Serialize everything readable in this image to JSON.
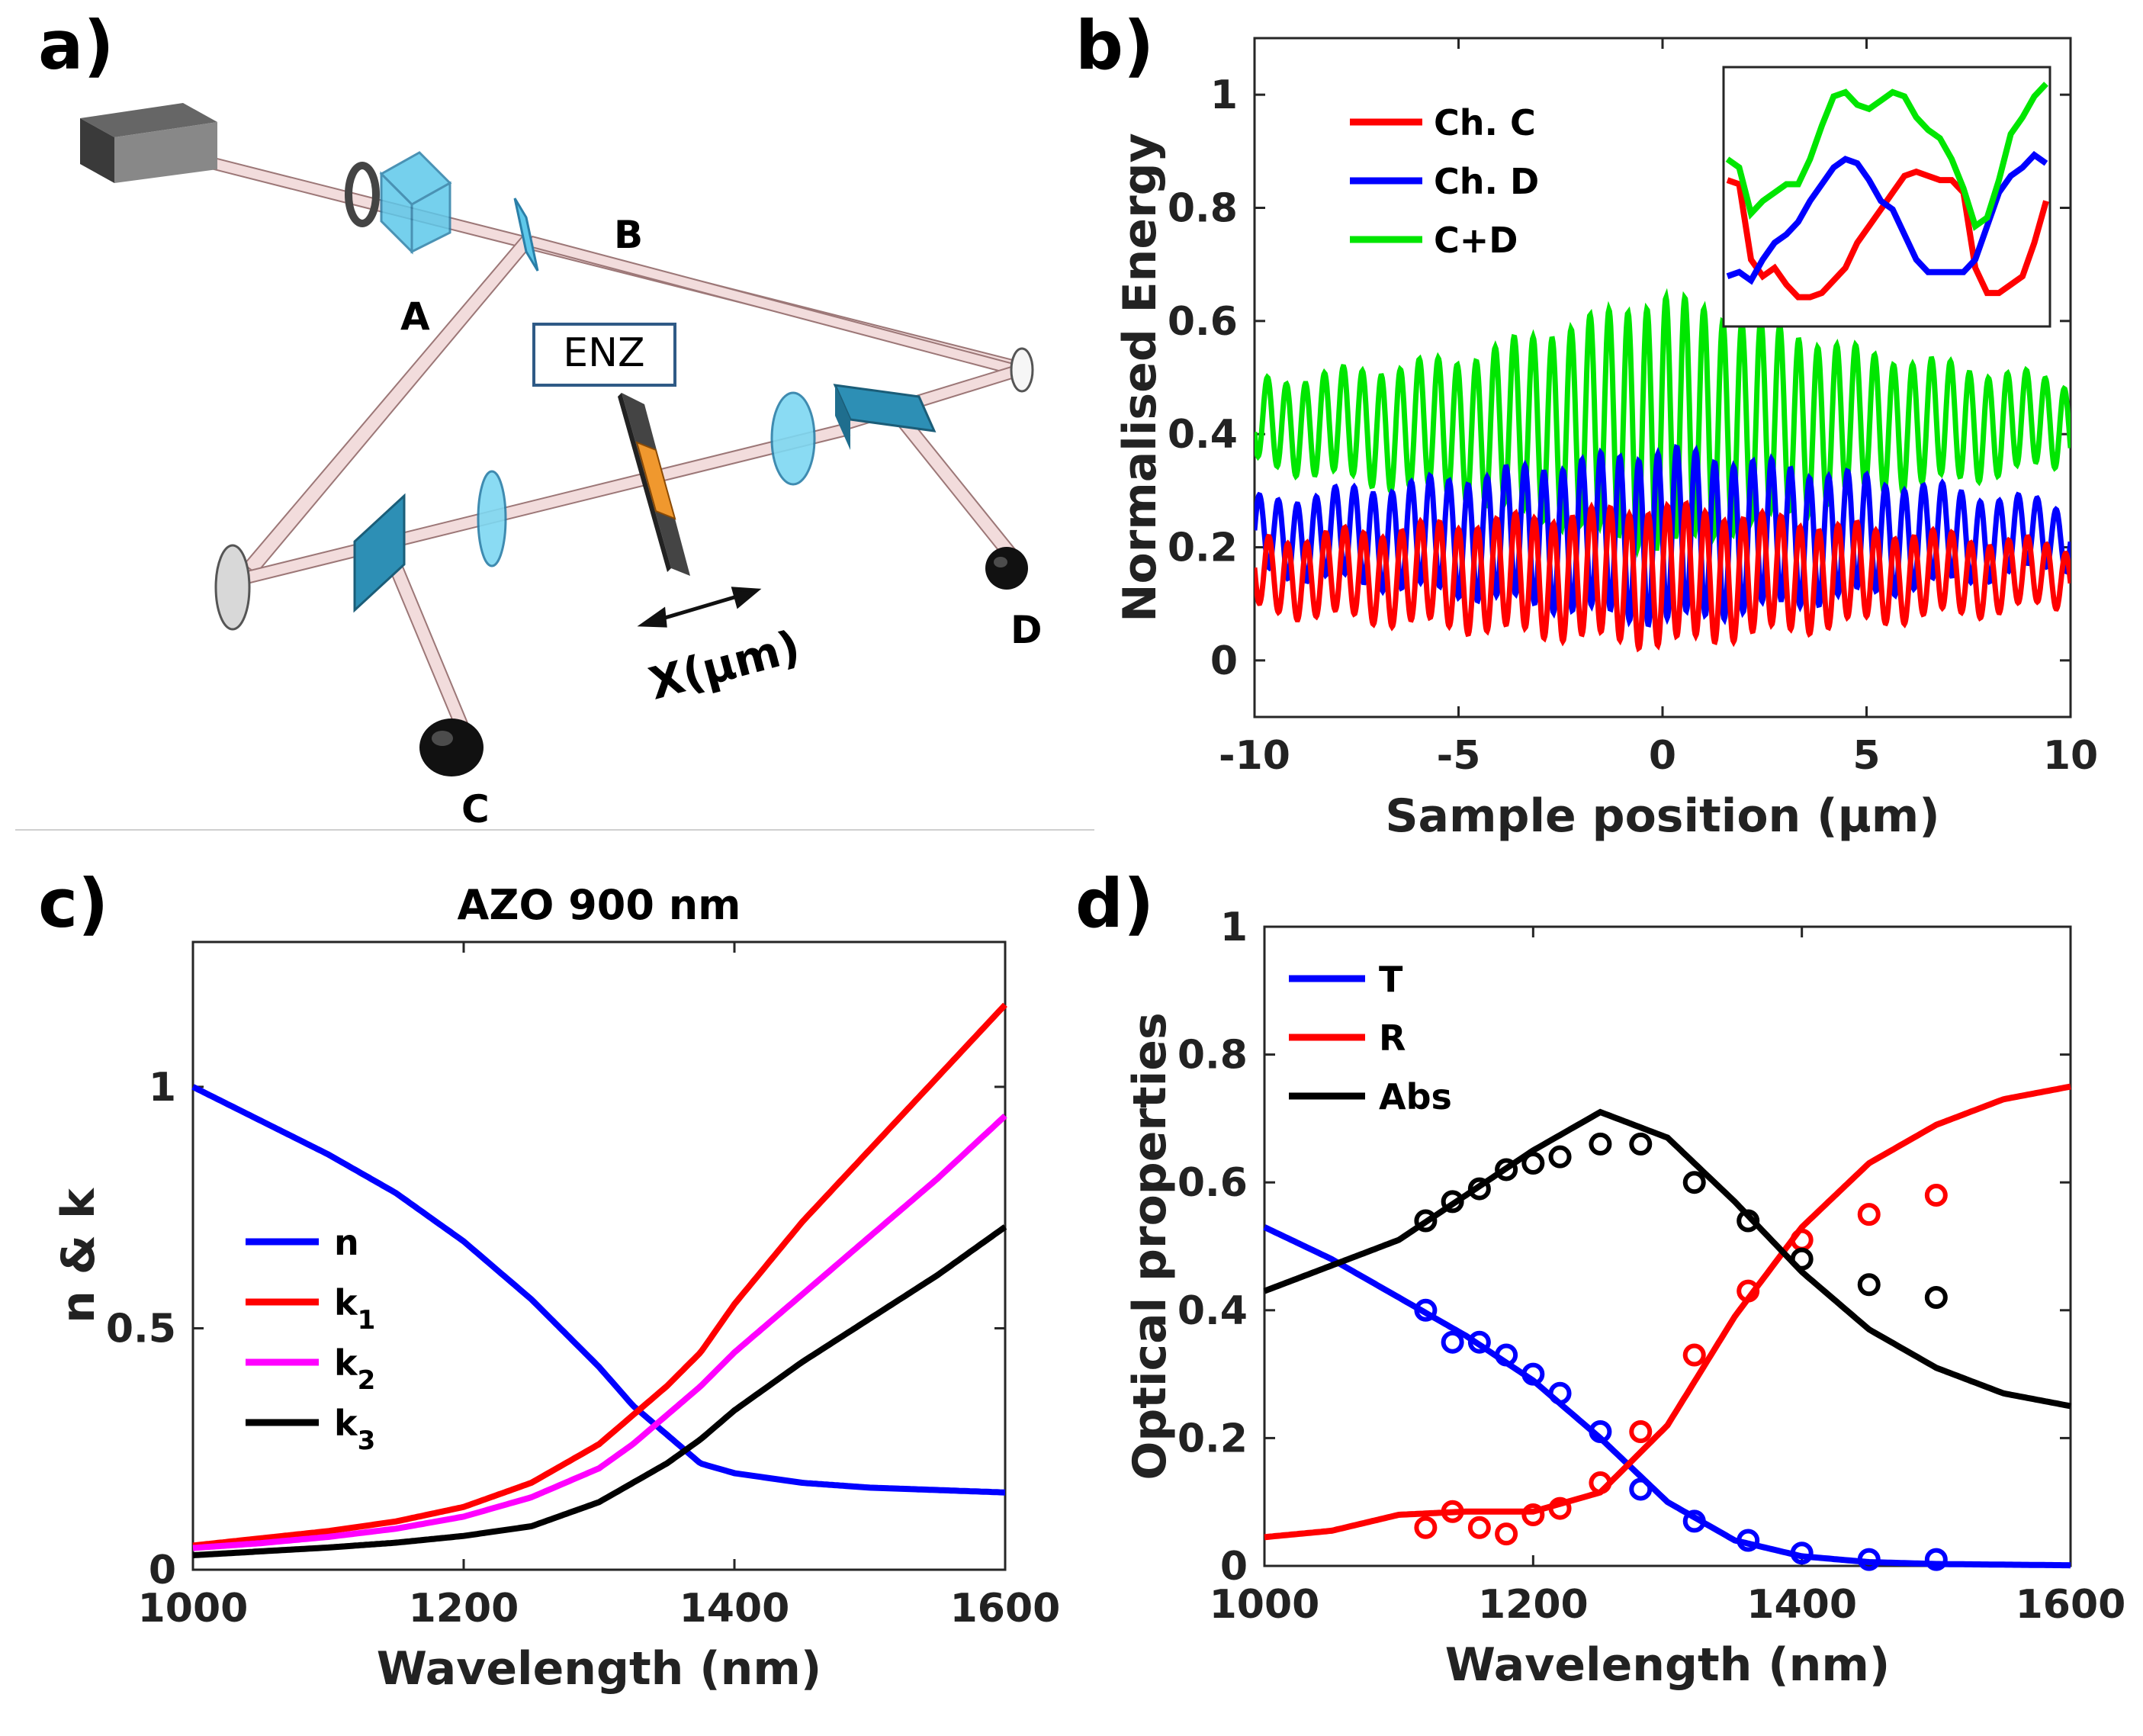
{
  "panels": {
    "a": "a)",
    "b": "b)",
    "c": "c)",
    "d": "d)"
  },
  "setup": {
    "labels": {
      "A": "A",
      "B": "B",
      "C": "C",
      "D": "D",
      "enz": "ENZ",
      "axis": "X(μm)"
    },
    "colors": {
      "beam": "#f2dcdc",
      "optic": "#5ec8ea",
      "splitter": "#2d8fb5",
      "sample": "#f0982e"
    }
  },
  "chart_data": [
    {
      "id": "b",
      "type": "line",
      "title": "",
      "xlabel": "Sample position (μm)",
      "ylabel": "Normalised Energy",
      "xlim": [
        -10,
        10
      ],
      "ylim": [
        -0.1,
        1.1
      ],
      "xticks": [
        -10,
        -5,
        0,
        5,
        10
      ],
      "yticks": [
        0,
        0.2,
        0.4,
        0.6,
        0.8,
        1
      ],
      "oscillation_period_um": 0.465,
      "series": [
        {
          "name": "Ch. C",
          "color": "#ff0000",
          "envelope": {
            "x": [
              -10,
              -5,
              0,
              5,
              10
            ],
            "mean": [
              0.15,
              0.15,
              0.15,
              0.15,
              0.15
            ],
            "amplitude": [
              0.06,
              0.09,
              0.12,
              0.08,
              0.05
            ]
          }
        },
        {
          "name": "Ch. D",
          "color": "#0000ff",
          "envelope": {
            "x": [
              -10,
              -5,
              0,
              5,
              10
            ],
            "mean": [
              0.22,
              0.22,
              0.22,
              0.22,
              0.22
            ],
            "amplitude": [
              0.06,
              0.1,
              0.15,
              0.1,
              0.05
            ]
          }
        },
        {
          "name": "C+D",
          "color": "#00e600",
          "envelope": {
            "x": [
              -10,
              -5,
              0,
              5,
              10
            ],
            "mean": [
              0.42,
              0.41,
              0.42,
              0.42,
              0.42
            ],
            "amplitude": [
              0.07,
              0.12,
              0.22,
              0.12,
              0.07
            ]
          }
        }
      ],
      "inset": {
        "type": "line",
        "series": [
          {
            "name": "Ch. C",
            "color": "#ff0000",
            "values": [
              0.85,
              0.84,
              0.66,
              0.62,
              0.64,
              0.6,
              0.57,
              0.57,
              0.58,
              0.61,
              0.64,
              0.7,
              0.74,
              0.78,
              0.82,
              0.86,
              0.87,
              0.86,
              0.85,
              0.85,
              0.82,
              0.64,
              0.58,
              0.58,
              0.6,
              0.62,
              0.7,
              0.8
            ]
          },
          {
            "name": "Ch. D",
            "color": "#0000ff",
            "values": [
              0.62,
              0.63,
              0.61,
              0.66,
              0.7,
              0.72,
              0.75,
              0.8,
              0.84,
              0.88,
              0.9,
              0.89,
              0.85,
              0.8,
              0.78,
              0.72,
              0.66,
              0.63,
              0.63,
              0.63,
              0.63,
              0.66,
              0.74,
              0.82,
              0.86,
              0.88,
              0.91,
              0.89
            ]
          },
          {
            "name": "C+D",
            "color": "#00e600",
            "values": [
              0.9,
              0.88,
              0.77,
              0.8,
              0.82,
              0.84,
              0.84,
              0.9,
              0.98,
              1.05,
              1.06,
              1.03,
              1.02,
              1.04,
              1.06,
              1.05,
              1.0,
              0.97,
              0.95,
              0.9,
              0.83,
              0.74,
              0.76,
              0.85,
              0.96,
              1.0,
              1.05,
              1.08
            ]
          }
        ]
      }
    },
    {
      "id": "c",
      "type": "line",
      "title": "AZO 900 nm",
      "xlabel": "Wavelength (nm)",
      "ylabel": "n & k",
      "xlim": [
        1000,
        1600
      ],
      "ylim": [
        0,
        1.3
      ],
      "xticks": [
        1000,
        1200,
        1400,
        1600
      ],
      "yticks": [
        0,
        0.5,
        1
      ],
      "x": [
        1000,
        1050,
        1100,
        1150,
        1200,
        1250,
        1300,
        1325,
        1350,
        1375,
        1400,
        1450,
        1500,
        1550,
        1600
      ],
      "series": [
        {
          "name": "n",
          "label_main": "n",
          "label_sub": "",
          "color": "#0000ff",
          "values": [
            1.0,
            0.93,
            0.86,
            0.78,
            0.68,
            0.56,
            0.42,
            0.34,
            0.28,
            0.22,
            0.2,
            0.18,
            0.17,
            0.165,
            0.16
          ]
        },
        {
          "name": "k1",
          "label_main": "k",
          "label_sub": "1",
          "color": "#ff0000",
          "values": [
            0.05,
            0.065,
            0.08,
            0.1,
            0.13,
            0.18,
            0.26,
            0.32,
            0.38,
            0.45,
            0.55,
            0.72,
            0.87,
            1.02,
            1.17
          ]
        },
        {
          "name": "k2",
          "label_main": "k",
          "label_sub": "2",
          "color": "#ff00ff",
          "values": [
            0.045,
            0.055,
            0.068,
            0.085,
            0.11,
            0.15,
            0.21,
            0.26,
            0.32,
            0.38,
            0.45,
            0.57,
            0.69,
            0.81,
            0.94
          ]
        },
        {
          "name": "k3",
          "label_main": "k",
          "label_sub": "3",
          "color": "#000000",
          "values": [
            0.03,
            0.038,
            0.046,
            0.056,
            0.07,
            0.09,
            0.14,
            0.18,
            0.22,
            0.27,
            0.33,
            0.43,
            0.52,
            0.61,
            0.71
          ]
        }
      ]
    },
    {
      "id": "d",
      "type": "line",
      "title": "",
      "xlabel": "Wavelength (nm)",
      "ylabel": "Optical properties",
      "xlim": [
        1000,
        1600
      ],
      "ylim": [
        0,
        1
      ],
      "xticks": [
        1000,
        1200,
        1400,
        1600
      ],
      "yticks": [
        0,
        0.2,
        0.4,
        0.6,
        0.8,
        1
      ],
      "series": [
        {
          "name": "T",
          "color": "#0000ff",
          "x": [
            1000,
            1050,
            1100,
            1150,
            1200,
            1250,
            1300,
            1350,
            1400,
            1450,
            1500,
            1550,
            1600
          ],
          "values": [
            0.53,
            0.48,
            0.42,
            0.36,
            0.29,
            0.2,
            0.1,
            0.04,
            0.015,
            0.006,
            0.003,
            0.002,
            0.001
          ],
          "measured": {
            "x": [
              1120,
              1140,
              1160,
              1180,
              1200,
              1220,
              1250,
              1280,
              1320,
              1360,
              1400,
              1450,
              1500
            ],
            "values": [
              0.4,
              0.35,
              0.35,
              0.33,
              0.3,
              0.27,
              0.21,
              0.12,
              0.07,
              0.04,
              0.02,
              0.01,
              0.01
            ]
          }
        },
        {
          "name": "R",
          "color": "#ff0000",
          "x": [
            1000,
            1050,
            1100,
            1150,
            1200,
            1250,
            1300,
            1350,
            1400,
            1450,
            1500,
            1550,
            1600
          ],
          "values": [
            0.045,
            0.055,
            0.08,
            0.085,
            0.085,
            0.115,
            0.22,
            0.39,
            0.53,
            0.63,
            0.69,
            0.73,
            0.75
          ],
          "measured": {
            "x": [
              1120,
              1140,
              1160,
              1180,
              1200,
              1220,
              1250,
              1280,
              1320,
              1360,
              1400,
              1450,
              1500
            ],
            "values": [
              0.06,
              0.085,
              0.06,
              0.05,
              0.08,
              0.09,
              0.13,
              0.21,
              0.33,
              0.43,
              0.51,
              0.55,
              0.58
            ]
          }
        },
        {
          "name": "Abs",
          "color": "#000000",
          "x": [
            1000,
            1050,
            1100,
            1150,
            1200,
            1250,
            1300,
            1350,
            1400,
            1450,
            1500,
            1550,
            1600
          ],
          "values": [
            0.43,
            0.47,
            0.51,
            0.58,
            0.65,
            0.71,
            0.67,
            0.57,
            0.46,
            0.37,
            0.31,
            0.27,
            0.25
          ],
          "measured": {
            "x": [
              1120,
              1140,
              1160,
              1180,
              1200,
              1220,
              1250,
              1280,
              1320,
              1360,
              1400,
              1450,
              1500
            ],
            "values": [
              0.54,
              0.57,
              0.59,
              0.62,
              0.63,
              0.64,
              0.66,
              0.66,
              0.6,
              0.54,
              0.48,
              0.44,
              0.42
            ]
          }
        }
      ]
    }
  ]
}
